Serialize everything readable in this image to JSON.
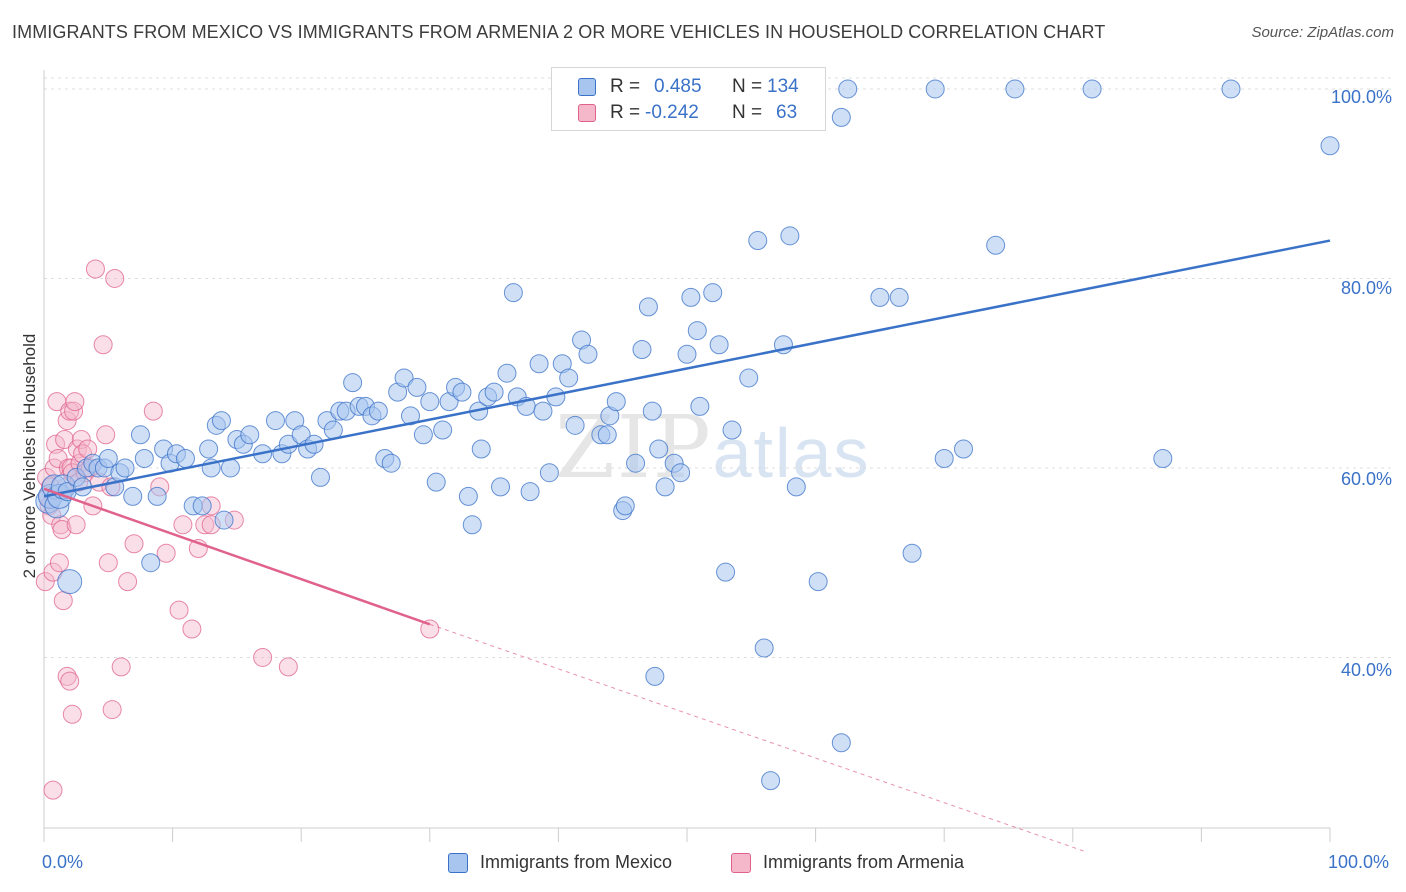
{
  "title": "IMMIGRANTS FROM MEXICO VS IMMIGRANTS FROM ARMENIA 2 OR MORE VEHICLES IN HOUSEHOLD CORRELATION CHART",
  "source": "Source: ZipAtlas.com",
  "watermark": {
    "zip": "ZIP",
    "atlas": "atlas"
  },
  "legend_top": {
    "rows": [
      {
        "r_label": "R =",
        "r_value": "0.485",
        "n_label": "N =",
        "n_value": "134",
        "color": "#a7c5ee"
      },
      {
        "r_label": "R =",
        "r_value": "-0.242",
        "n_label": "N =",
        "n_value": "63",
        "color": "#f5b8cb"
      }
    ]
  },
  "legend_bottom": [
    {
      "label": "Immigrants from Mexico",
      "color": "#a7c5ee"
    },
    {
      "label": "Immigrants from Armenia",
      "color": "#f5b8cb"
    }
  ],
  "colors": {
    "blue": "#3a72c8",
    "blue_fill": "#a7c5ee",
    "pink": "#e0628c",
    "pink_fill": "#f5b8cb",
    "grid": "#dddddd"
  },
  "chart_data": {
    "type": "scatter",
    "title": "IMMIGRANTS FROM MEXICO VS IMMIGRANTS FROM ARMENIA 2 OR MORE VEHICLES IN HOUSEHOLD CORRELATION CHART",
    "xlabel": "",
    "ylabel": "2 or more Vehicles in Household",
    "xlim": [
      0,
      100
    ],
    "ylim": [
      22,
      102
    ],
    "x_tick_labels": [
      "0.0%",
      "100.0%"
    ],
    "y_ticks": [
      40,
      60,
      80,
      100
    ],
    "y_tick_labels": [
      "40.0%",
      "60.0%",
      "80.0%",
      "100.0%"
    ],
    "grid": true,
    "series": [
      {
        "name": "Immigrants from Mexico",
        "r": 0.485,
        "n": 134,
        "trend": {
          "x": [
            0,
            100
          ],
          "y": [
            57.0,
            84.0
          ]
        },
        "points": [
          [
            0.3,
            56.5
          ],
          [
            0.5,
            57
          ],
          [
            0.8,
            58
          ],
          [
            1,
            56
          ],
          [
            1.2,
            57
          ],
          [
            1.5,
            58
          ],
          [
            1.8,
            57.5
          ],
          [
            2,
            48
          ],
          [
            2.5,
            59
          ],
          [
            3,
            58
          ],
          [
            3.3,
            60
          ],
          [
            3.8,
            60.5
          ],
          [
            4.2,
            60
          ],
          [
            4.7,
            60
          ],
          [
            5,
            61
          ],
          [
            5.5,
            58
          ],
          [
            5.9,
            59.5
          ],
          [
            6.3,
            60
          ],
          [
            6.9,
            57
          ],
          [
            7.5,
            63.5
          ],
          [
            7.8,
            61
          ],
          [
            8.3,
            50
          ],
          [
            8.8,
            57
          ],
          [
            9.3,
            62
          ],
          [
            9.8,
            60.5
          ],
          [
            10.3,
            61.5
          ],
          [
            11,
            61
          ],
          [
            11.6,
            56
          ],
          [
            12.3,
            56
          ],
          [
            12.8,
            62
          ],
          [
            13,
            60
          ],
          [
            13.4,
            64.5
          ],
          [
            13.8,
            65
          ],
          [
            14,
            54.5
          ],
          [
            14.5,
            60
          ],
          [
            15,
            63
          ],
          [
            15.5,
            62.5
          ],
          [
            16,
            63.5
          ],
          [
            17,
            61.5
          ],
          [
            18,
            65
          ],
          [
            18.5,
            61.5
          ],
          [
            19,
            62.5
          ],
          [
            19.5,
            65
          ],
          [
            20,
            63.5
          ],
          [
            20.5,
            62
          ],
          [
            21,
            62.5
          ],
          [
            21.5,
            59
          ],
          [
            22,
            65
          ],
          [
            22.5,
            64
          ],
          [
            23,
            66
          ],
          [
            23.5,
            66
          ],
          [
            24,
            69
          ],
          [
            24.5,
            66.5
          ],
          [
            25,
            66.5
          ],
          [
            25.5,
            65.5
          ],
          [
            26,
            66
          ],
          [
            26.5,
            61
          ],
          [
            27,
            60.5
          ],
          [
            27.5,
            68
          ],
          [
            28,
            69.5
          ],
          [
            28.5,
            65.5
          ],
          [
            29,
            68.5
          ],
          [
            29.5,
            63.5
          ],
          [
            30,
            67
          ],
          [
            30.5,
            58.5
          ],
          [
            31,
            64
          ],
          [
            31.5,
            67
          ],
          [
            32,
            68.5
          ],
          [
            32.5,
            68
          ],
          [
            33,
            57
          ],
          [
            33.3,
            54
          ],
          [
            33.8,
            66
          ],
          [
            34,
            62
          ],
          [
            34.5,
            67.5
          ],
          [
            35,
            68
          ],
          [
            35.5,
            58
          ],
          [
            36,
            70
          ],
          [
            36.5,
            78.5
          ],
          [
            36.8,
            67.5
          ],
          [
            37.5,
            66.5
          ],
          [
            37.8,
            57.5
          ],
          [
            38.5,
            71
          ],
          [
            38.8,
            66
          ],
          [
            39.3,
            59.5
          ],
          [
            39.8,
            67.5
          ],
          [
            40.3,
            71
          ],
          [
            40.8,
            69.5
          ],
          [
            41.3,
            64.5
          ],
          [
            41.8,
            73.5
          ],
          [
            42.3,
            72
          ],
          [
            43.3,
            63.5
          ],
          [
            43.8,
            63.5
          ],
          [
            44,
            65.5
          ],
          [
            44.5,
            67
          ],
          [
            45,
            55.5
          ],
          [
            45.2,
            56
          ],
          [
            46,
            60.5
          ],
          [
            46.5,
            72.5
          ],
          [
            47,
            77
          ],
          [
            47.3,
            66
          ],
          [
            47.8,
            62
          ],
          [
            48.3,
            58
          ],
          [
            49,
            60.5
          ],
          [
            49.5,
            59.5
          ],
          [
            50,
            72
          ],
          [
            50.3,
            78
          ],
          [
            50.8,
            74.5
          ],
          [
            51,
            66.5
          ],
          [
            52,
            78.5
          ],
          [
            52.5,
            73
          ],
          [
            53,
            49
          ],
          [
            53.5,
            64
          ],
          [
            54.8,
            69.5
          ],
          [
            55.5,
            84
          ],
          [
            57.5,
            73
          ],
          [
            58,
            84.5
          ],
          [
            58.5,
            58
          ],
          [
            60.2,
            48
          ],
          [
            62,
            97
          ],
          [
            62.5,
            100
          ],
          [
            65,
            78
          ],
          [
            66.5,
            78
          ],
          [
            67.5,
            51
          ],
          [
            69.3,
            100
          ],
          [
            70,
            61
          ],
          [
            71.5,
            62
          ],
          [
            74,
            83.5
          ],
          [
            75.5,
            100
          ],
          [
            81.5,
            100
          ],
          [
            87,
            61
          ],
          [
            92.3,
            100
          ],
          [
            100,
            94
          ],
          [
            56,
            41
          ],
          [
            47.5,
            38
          ],
          [
            62,
            31
          ],
          [
            56.5,
            27
          ]
        ]
      },
      {
        "name": "Immigrants from Armenia",
        "r": -0.242,
        "n": 63,
        "trend": {
          "x": [
            0,
            30
          ],
          "y": [
            57.8,
            43.5
          ],
          "x_dashed": [
            30,
            81
          ],
          "y_dashed": [
            43.5,
            19.5
          ]
        },
        "points": [
          [
            0.1,
            48
          ],
          [
            0.2,
            59
          ],
          [
            0.3,
            57
          ],
          [
            0.4,
            56
          ],
          [
            0.5,
            58
          ],
          [
            0.6,
            55
          ],
          [
            0.7,
            49
          ],
          [
            0.8,
            60
          ],
          [
            0.9,
            62.5
          ],
          [
            1,
            67
          ],
          [
            1.1,
            61
          ],
          [
            1.2,
            50
          ],
          [
            1.3,
            54
          ],
          [
            1.4,
            53.5
          ],
          [
            1.5,
            46
          ],
          [
            1.6,
            63
          ],
          [
            1.7,
            58
          ],
          [
            1.8,
            65
          ],
          [
            1.9,
            60
          ],
          [
            2,
            66
          ],
          [
            2.1,
            60
          ],
          [
            2.2,
            59.5
          ],
          [
            2.3,
            66
          ],
          [
            2.4,
            67
          ],
          [
            2.5,
            54
          ],
          [
            2.6,
            62
          ],
          [
            2.7,
            58.5
          ],
          [
            2.8,
            60.5
          ],
          [
            2.9,
            63
          ],
          [
            3,
            61.5
          ],
          [
            3.2,
            59.5
          ],
          [
            3.4,
            62
          ],
          [
            3.6,
            60
          ],
          [
            3.8,
            56
          ],
          [
            4,
            81
          ],
          [
            4.3,
            58.5
          ],
          [
            4.6,
            73
          ],
          [
            4.8,
            63.5
          ],
          [
            5,
            50
          ],
          [
            5.2,
            58
          ],
          [
            5.5,
            80
          ],
          [
            6,
            39
          ],
          [
            6.5,
            48
          ],
          [
            7,
            52
          ],
          [
            8.5,
            66
          ],
          [
            9,
            58
          ],
          [
            9.5,
            51
          ],
          [
            10.5,
            45
          ],
          [
            10.8,
            54
          ],
          [
            11.5,
            43
          ],
          [
            12,
            51.5
          ],
          [
            12.5,
            54
          ],
          [
            13,
            56
          ],
          [
            13,
            54
          ],
          [
            14.8,
            54.5
          ],
          [
            17,
            40
          ],
          [
            19,
            39
          ],
          [
            30,
            43
          ],
          [
            1.8,
            38
          ],
          [
            2,
            37.5
          ],
          [
            2.2,
            34
          ],
          [
            5.3,
            34.5
          ],
          [
            0.7,
            26
          ]
        ]
      }
    ]
  }
}
